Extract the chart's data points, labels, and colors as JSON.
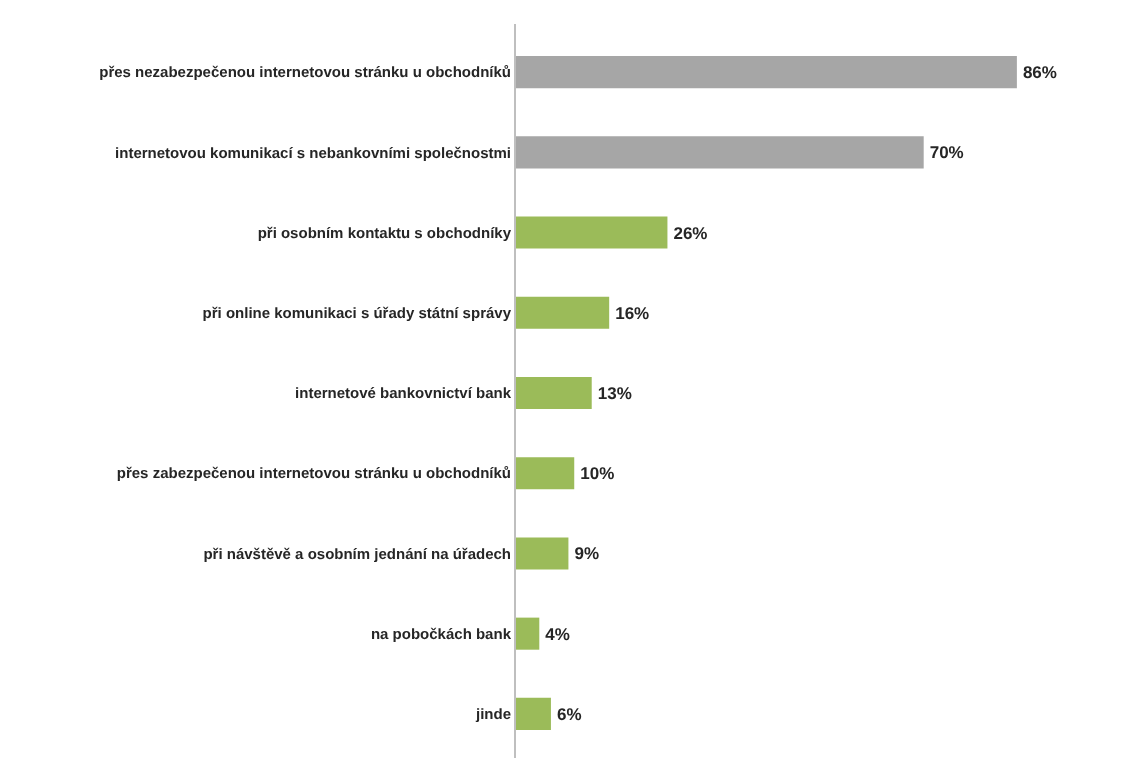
{
  "chart_data": {
    "type": "bar",
    "orientation": "horizontal",
    "categories": [
      "přes nezabezpečenou internetovou stránku u obchodníků",
      "internetovou komunikací s nebankovními společnostmi",
      "při osobním kontaktu s obchodníky",
      "při online komunikaci s úřady státní správy",
      "internetové bankovnictví bank",
      "přes zabezpečenou internetovou stránku u obchodníků",
      "při návštěvě a osobním jednání na úřadech",
      "na pobočkách bank",
      "jinde"
    ],
    "values": [
      86,
      70,
      26,
      16,
      13,
      10,
      9,
      4,
      6
    ],
    "colors": [
      "#a6a6a6",
      "#a6a6a6",
      "#9bbb59",
      "#9bbb59",
      "#9bbb59",
      "#9bbb59",
      "#9bbb59",
      "#9bbb59",
      "#9bbb59"
    ],
    "value_labels": [
      "86%",
      "70%",
      "26%",
      "16%",
      "13%",
      "10%",
      "9%",
      "4%",
      "6%"
    ]
  }
}
